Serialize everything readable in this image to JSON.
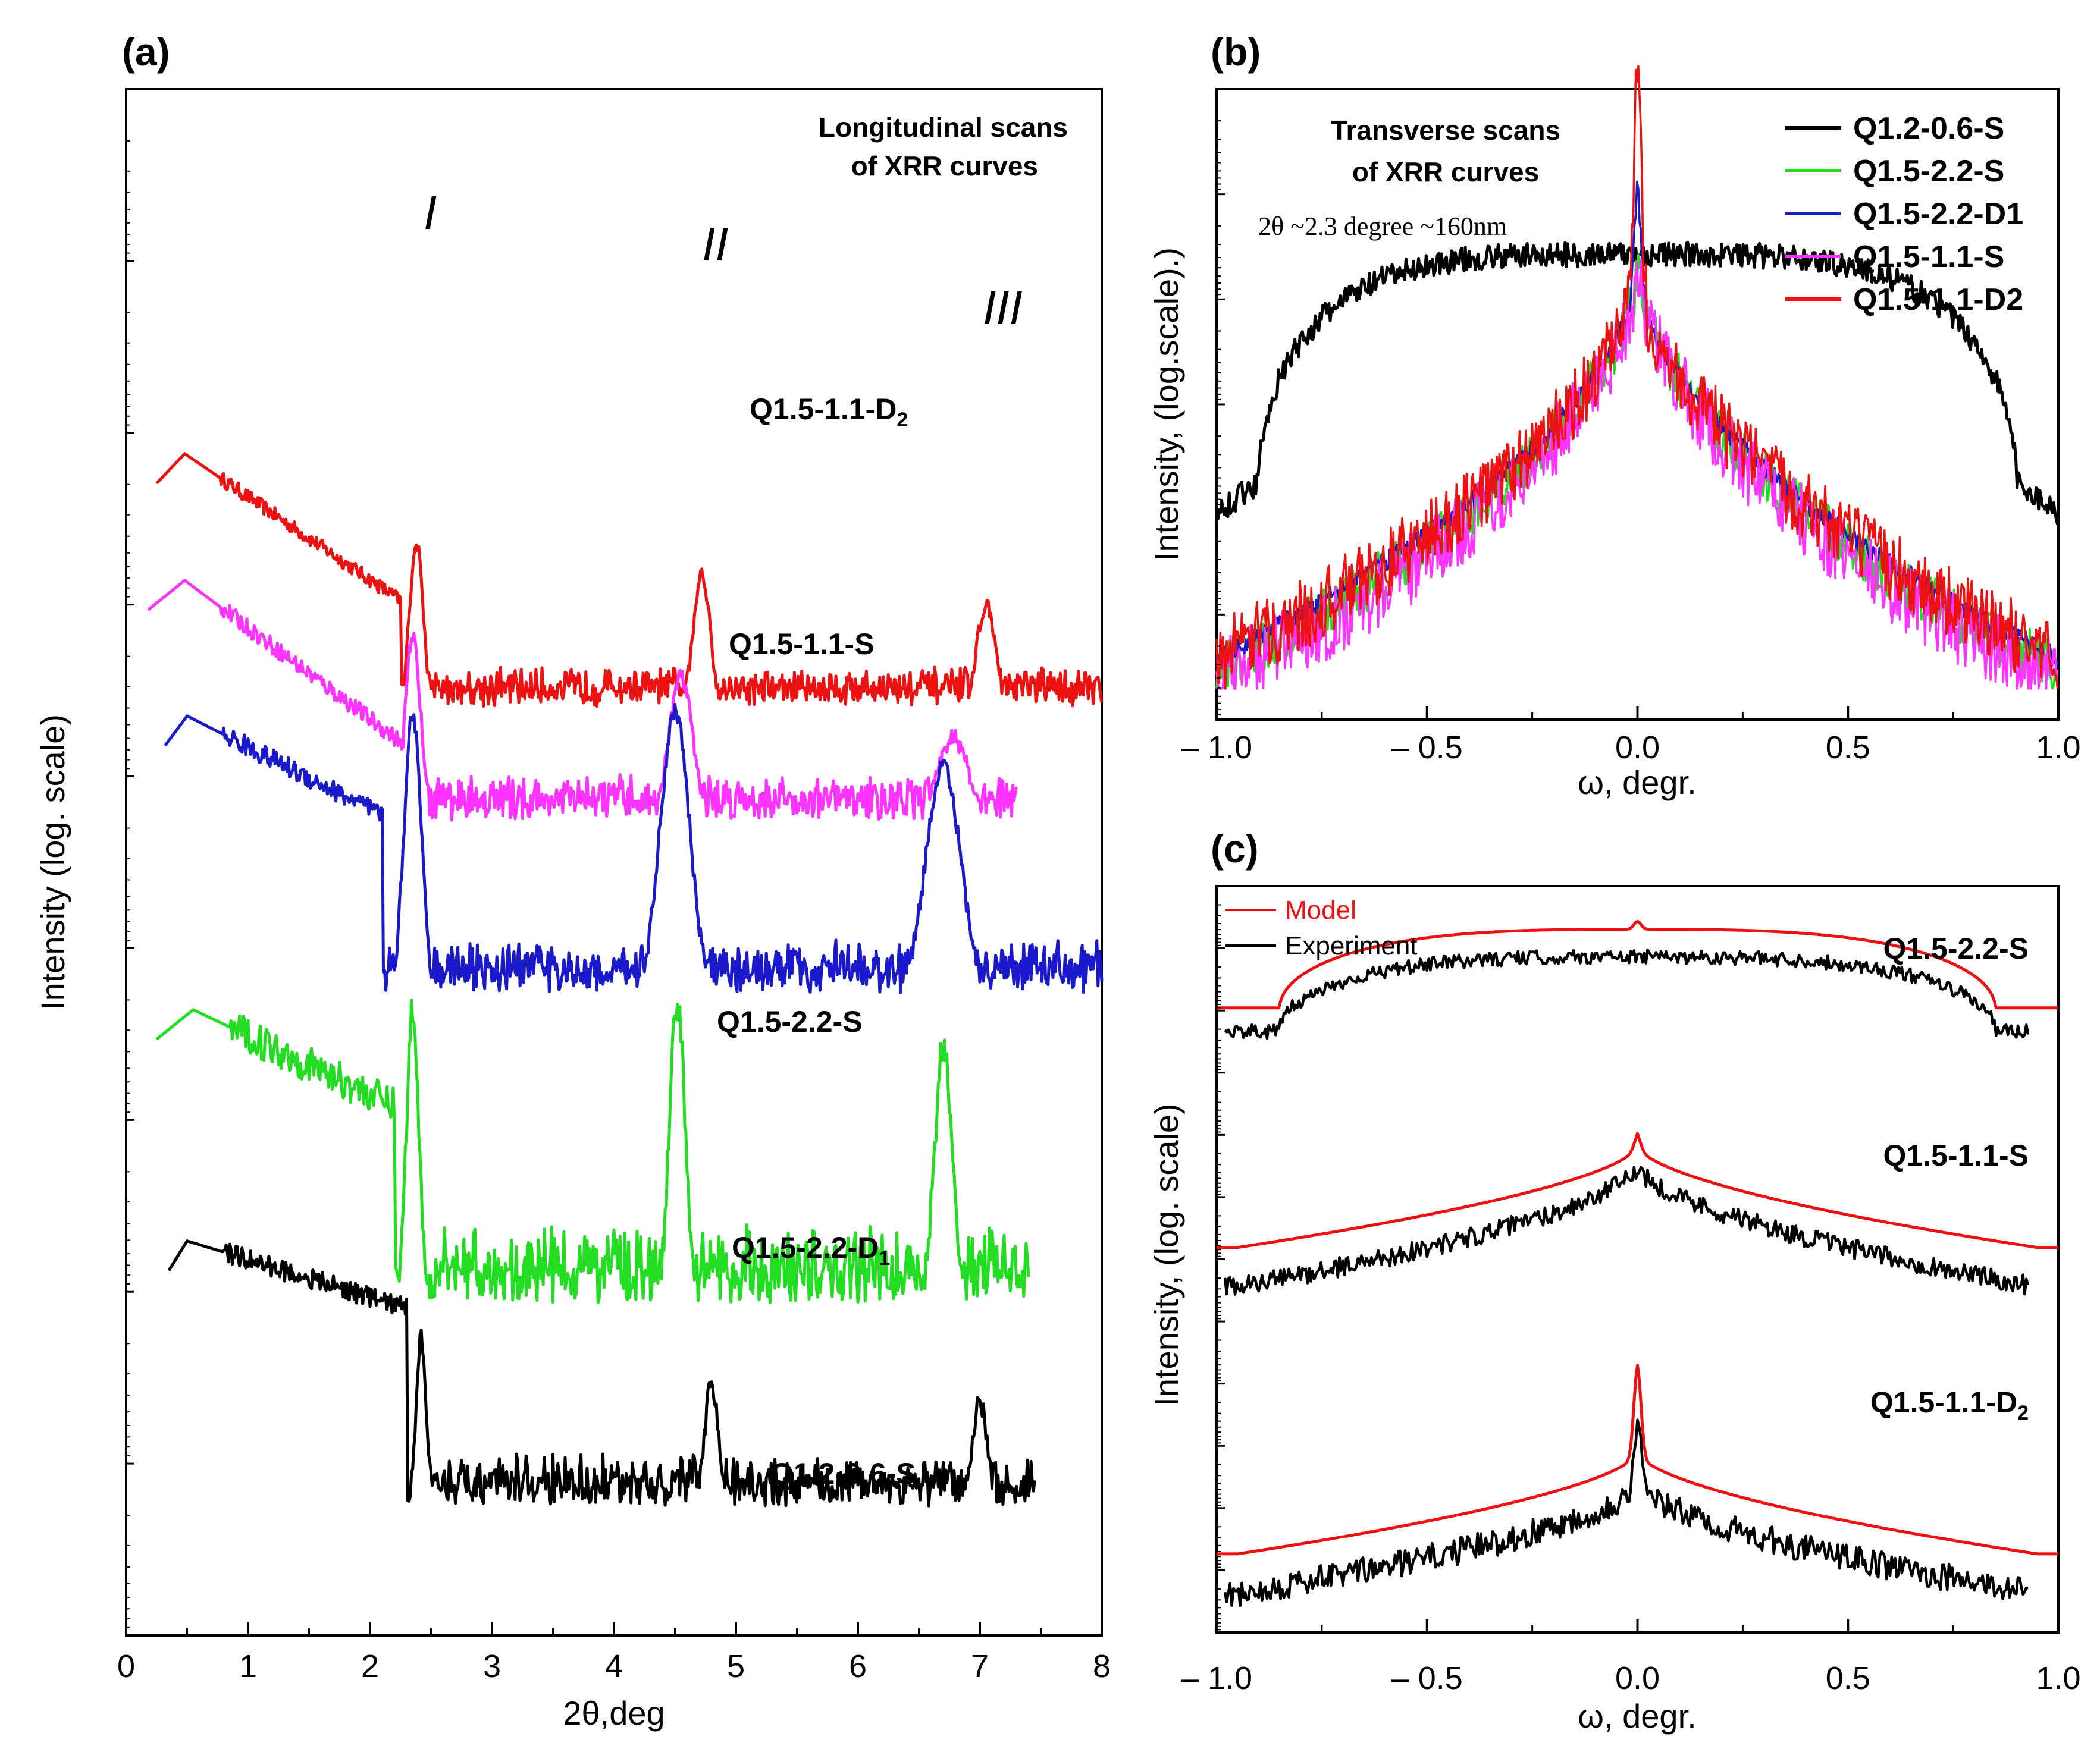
{
  "panels": {
    "a": {
      "label": "(a)",
      "xlabel": "2θ,deg",
      "ylabel": "Intensity (log. scale)",
      "xticks": [
        "0",
        "1",
        "2",
        "3",
        "4",
        "5",
        "6",
        "7",
        "8"
      ],
      "annotation": [
        "Longitudinal scans",
        "of XRR curves"
      ],
      "peak_labels": [
        "I",
        "II",
        "III"
      ]
    },
    "b": {
      "label": "(b)",
      "xlabel": "ω, degr.",
      "ylabel": "Intensity, (log.scale).)",
      "xticks": [
        "– 1.0",
        "– 0.5",
        "0.0",
        "0.5",
        "1.0"
      ],
      "annotation": [
        "Transverse scans",
        "of XRR curves"
      ],
      "note": "2θ ~2.3 degree ~160nm",
      "legend": [
        {
          "name": "Q1.2-0.6-S",
          "color": "#000000"
        },
        {
          "name": "Q1.5-2.2-S",
          "color": "#22dd22"
        },
        {
          "name": "Q1.5-2.2-D1",
          "color": "#1a1acc"
        },
        {
          "name": "Q1.5-1.1-S",
          "color": "#ff33ff"
        },
        {
          "name": "Q1.5-1.1-D2",
          "color": "#ee1111"
        }
      ]
    },
    "c": {
      "label": "(c)",
      "xlabel": "ω, degr.",
      "ylabel": "Intensity, (log. scale)",
      "xticks": [
        "– 1.0",
        "– 0.5",
        "0.0",
        "0.5",
        "1.0"
      ],
      "legend": [
        {
          "name": "Model",
          "color": "#ee1111"
        },
        {
          "name": "Experiment",
          "color": "#000000"
        }
      ]
    }
  },
  "chart_data": [
    {
      "type": "line",
      "panel": "a",
      "title": "Longitudinal scans of XRR curves",
      "xlabel": "2θ,deg",
      "ylabel": "Intensity (log. scale)",
      "xlim": [
        0,
        8
      ],
      "series": [
        {
          "name": "Q1.5-1.1-D2",
          "label": "Q1.5-1.1-D2",
          "color": "#ee1111",
          "offset": 0.0,
          "x_range": [
            0.25,
            8.0
          ],
          "start": 0.38,
          "edge": 0.48,
          "peak_height": 8.8,
          "peaks": [
            {
              "x": 2.38,
              "h": 5.8,
              "w": 0.08
            },
            {
              "x": 4.72,
              "h": 4.7,
              "w": 0.1
            },
            {
              "x": 7.05,
              "h": 3.7,
              "w": 0.11
            }
          ],
          "base": 0.0,
          "noise": 0.5,
          "decay": 2.0,
          "trough": 2.25
        },
        {
          "name": "Q1.5-1.1-S",
          "label": "Q1.5-1.1-S",
          "color": "#ff33ff",
          "offset": -1.7,
          "x_range": [
            0.18,
            7.3
          ],
          "start": 0.2,
          "edge": 0.48,
          "peak_height": 8.3,
          "peaks": [
            {
              "x": 2.35,
              "h": 6.5,
              "w": 0.09
            },
            {
              "x": 4.55,
              "h": 5.0,
              "w": 0.14
            },
            {
              "x": 6.78,
              "h": 3.0,
              "w": 0.18
            }
          ],
          "base": 0.0,
          "noise": 0.6,
          "decay": 2.2,
          "trough": 2.25
        },
        {
          "name": "Q1.5-2.2-S",
          "label": "Q1.5-2.2-S",
          "color": "#1a1acc",
          "offset": -4.3,
          "x_range": [
            0.32,
            8.0
          ],
          "start": 0.32,
          "edge": 0.5,
          "peak_height": 9.5,
          "peaks": [
            {
              "x": 2.35,
              "h": 9.6,
              "w": 0.1
            },
            {
              "x": 4.5,
              "h": 9.6,
              "w": 0.17
            },
            {
              "x": 6.7,
              "h": 7.8,
              "w": 0.2
            }
          ],
          "base": 0.0,
          "noise": 0.7,
          "decay": 1.5,
          "trough": 2.1
        },
        {
          "name": "Q1.5-2.2-D1",
          "label": "Q1.5-2.2-D1",
          "color": "#22dd22",
          "offset": -8.9,
          "x_range": [
            0.25,
            7.4
          ],
          "start": 0.25,
          "edge": 0.55,
          "peak_height": 9.8,
          "peaks": [
            {
              "x": 2.35,
              "h": 10.0,
              "w": 0.07
            },
            {
              "x": 4.52,
              "h": 10.0,
              "w": 0.09
            },
            {
              "x": 6.7,
              "h": 8.5,
              "w": 0.1
            }
          ],
          "base": 0.0,
          "noise": 1.2,
          "decay": 1.4,
          "trough": 2.2
        },
        {
          "name": "Q1.2-0.6-S",
          "label": "Q1.2-0.6-S",
          "color": "#000000",
          "offset": -12.1,
          "x_range": [
            0.35,
            7.45
          ],
          "start": 0.35,
          "edge": 0.5,
          "peak_height": 9.1,
          "peaks": [
            {
              "x": 2.42,
              "h": 5.8,
              "w": 0.06
            },
            {
              "x": 4.8,
              "h": 4.3,
              "w": 0.08
            },
            {
              "x": 7.0,
              "h": 3.7,
              "w": 0.09
            }
          ],
          "base": 0.0,
          "noise": 0.7,
          "decay": 0.9,
          "trough": 2.3
        }
      ]
    },
    {
      "type": "line",
      "panel": "b",
      "title": "Transverse scans of XRR curves",
      "note": "2θ ~2.3 degree ~160nm",
      "xlabel": "ω, degr.",
      "ylabel": "Intensity, (log.scale).)",
      "xlim": [
        -1.0,
        1.0
      ],
      "series": [
        {
          "name": "Q1.2-0.6-S",
          "color": "#000000",
          "shape": "dome",
          "center": 0.0,
          "halfwidth": 0.9,
          "top": 5.0,
          "floor": 2.8,
          "noise": 0.12,
          "spike": 0.0
        },
        {
          "name": "Q1.5-2.2-S",
          "color": "#22dd22",
          "shape": "cusp",
          "center": 0.0,
          "halfwidth": 0.8,
          "top": 4.9,
          "floor": 1.4,
          "noise": 0.25,
          "spike": 0.0
        },
        {
          "name": "Q1.5-2.2-D1",
          "color": "#1a1acc",
          "shape": "cusp",
          "center": 0.0,
          "halfwidth": 0.9,
          "top": 4.9,
          "floor": 1.3,
          "noise": 0.1,
          "spike": 0.8
        },
        {
          "name": "Q1.5-1.1-S",
          "color": "#ff33ff",
          "shape": "cusp",
          "center": 0.0,
          "halfwidth": 0.7,
          "top": 4.9,
          "floor": 1.5,
          "noise": 0.35,
          "spike": 0.0
        },
        {
          "name": "Q1.5-1.1-D2",
          "color": "#ee1111",
          "shape": "cusp",
          "center": 0.0,
          "halfwidth": 0.8,
          "top": 4.9,
          "floor": 1.5,
          "noise": 0.35,
          "spike": 2.0
        }
      ]
    },
    {
      "type": "line",
      "panel": "c",
      "xlabel": "ω, degr.",
      "ylabel": "Intensity, (log. scale)",
      "xlim": [
        -1.0,
        1.0
      ],
      "legend": [
        "Model",
        "Experiment"
      ],
      "groups": [
        {
          "label": "Q1.5-2.2-S",
          "model_color": "#ee1111",
          "exp_color": "#000000",
          "shape": "dome",
          "offset": 0.0,
          "model": {
            "top": 11.9,
            "edge": 9.9,
            "spike": 0.2
          },
          "experiment": {
            "top": 11.2,
            "edge": 9.3,
            "noise": 0.18
          }
        },
        {
          "label": "Q1.5-1.1-S",
          "model_color": "#ee1111",
          "exp_color": "#000000",
          "shape": "cusp",
          "offset": -4.0,
          "model": {
            "top": 10.4,
            "edge": 7.8,
            "spike": 0.3
          },
          "experiment": {
            "top": 9.9,
            "edge": 6.8,
            "noise": 0.25
          }
        },
        {
          "label": "Q1.5-1.1-D2",
          "model_color": "#ee1111",
          "exp_color": "#000000",
          "shape": "cusp",
          "offset": -8.0,
          "model": {
            "top": 6.6,
            "edge": 4.0,
            "spike": 2.2
          },
          "experiment": {
            "top": 5.8,
            "edge": 3.0,
            "noise": 0.35,
            "spike": 1.6
          }
        }
      ]
    }
  ]
}
